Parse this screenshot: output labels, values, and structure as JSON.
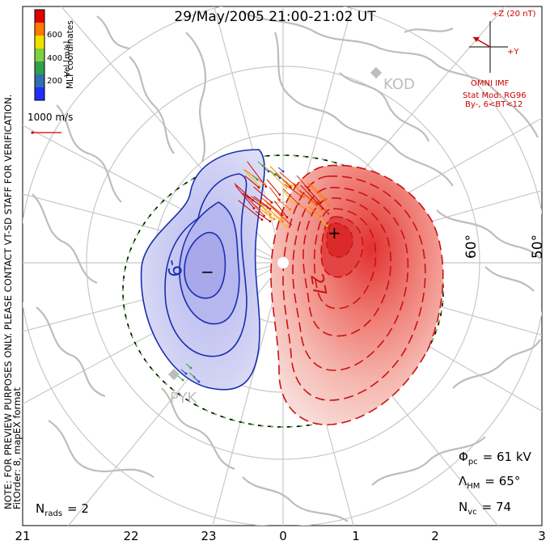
{
  "title": "29/May/2005 21:00-21:02 UT",
  "side_notes": {
    "preview": "NOTE: FOR PREVIEW PURPOSES ONLY. PLEASE CONTACT VT-SD STAFF FOR VERIFICATION.",
    "fitorder": "FitOrder: 8, mapEX format",
    "coords": "MLT coordinates"
  },
  "colorbar": {
    "title": "Vel [m/s]",
    "ticks": [
      "600",
      "400",
      "200"
    ],
    "colors": [
      "#e00000",
      "#ff7a00",
      "#f0e000",
      "#80d040",
      "#30a050",
      "#3070b0",
      "#2030ff"
    ]
  },
  "vector_scale": "1000 m/s",
  "imf": {
    "z_label": "+Z (20 nT)",
    "y_label": "+Y",
    "source": "OMNI IMF",
    "model": "Stat Mod: RG96",
    "cond": "By-, 6<BT<12"
  },
  "stations": [
    "KOD",
    "PYK"
  ],
  "lat_labels": [
    "60°",
    "50°"
  ],
  "contours": {
    "neg_value": "-9",
    "pos_value": "27",
    "min_marker": "−",
    "max_marker": "+"
  },
  "stats": {
    "phi_symbol": "Φ",
    "phi_sub": "pc",
    "phi_value": "= 61 kV",
    "lambda_symbol": "Λ",
    "lambda_sub": "HM",
    "lambda_value": "= 65°",
    "nvc_symbol": "N",
    "nvc_sub": "vc",
    "nvc_value": "= 74",
    "nrads_symbol": "N",
    "nrads_sub": "rads",
    "nrads_value": "= 2"
  },
  "mlt_labels": [
    "21",
    "22",
    "23",
    "0",
    "1",
    "2",
    "3"
  ],
  "colors": {
    "negative": "#1a2fb0",
    "positive": "#cc1111",
    "coast": "#bdbdbd",
    "grid": "#c8c8c8"
  }
}
